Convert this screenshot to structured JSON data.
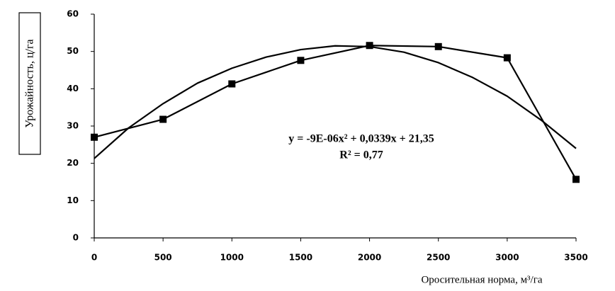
{
  "chart_data": {
    "type": "line",
    "y_label": "Урожайность, ц/га",
    "x_label": "Оросительная норма, м³/га",
    "annotations": [
      "y = -9E-06x² + 0,0339x + 21,35",
      "R² = 0,77"
    ],
    "x": [
      0,
      500,
      1000,
      1500,
      2000,
      2500,
      3000,
      3500
    ],
    "series": [
      {
        "color": "#000000",
        "marker": "square",
        "values": [
          27,
          31.8,
          41.3,
          47.6,
          51.6,
          51.3,
          48.3,
          15.7
        ]
      },
      {
        "color": "#000000",
        "marker": "none",
        "x": [
          0,
          250,
          500,
          750,
          1000,
          1250,
          1500,
          1750,
          2000,
          2250,
          2500,
          2750,
          3000,
          3250,
          3500
        ],
        "values": [
          21.3,
          29.5,
          36,
          41.5,
          45.5,
          48.5,
          50.5,
          51.5,
          51.3,
          49.8,
          47,
          43,
          38,
          31.5,
          24
        ]
      }
    ],
    "xlim": [
      0,
      3500
    ],
    "xticks": [
      0,
      500,
      1000,
      1500,
      2000,
      2500,
      3000,
      3500
    ],
    "ylim": [
      0,
      60
    ],
    "yticks": [
      0,
      10,
      20,
      30,
      40,
      50,
      60
    ],
    "grid": false
  }
}
